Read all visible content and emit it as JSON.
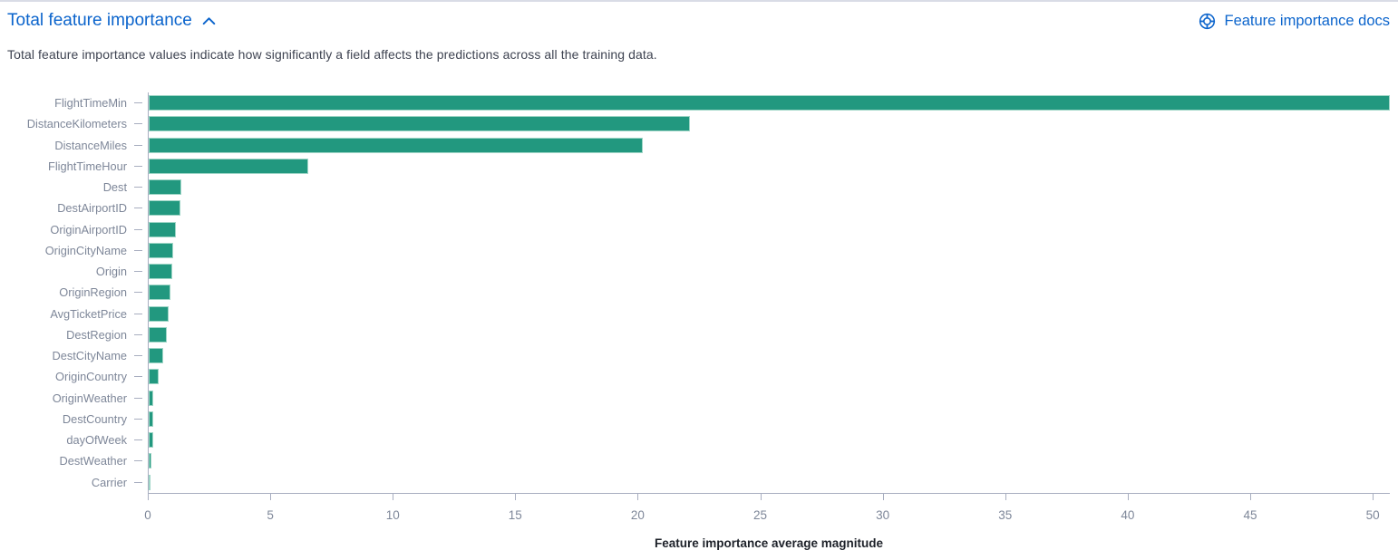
{
  "header": {
    "title": "Total feature importance",
    "collapse_icon": "chevron-up-icon",
    "docs_link": {
      "label": "Feature importance docs",
      "icon": "life-buoy-icon"
    }
  },
  "description": "Total feature importance values indicate how significantly a field affects the predictions across all the training data.",
  "colors": {
    "link_blue": "#0b64cc",
    "bar_fill": "#22987f",
    "bar_edge": "#9ed5c6",
    "axis_line": "#a8aec0",
    "axis_label_gray": "#7e8799",
    "description_text": "#3e4351",
    "axis_title_text": "#1d2129",
    "top_divider": "#d9dce6"
  },
  "chart_data": {
    "type": "bar",
    "orientation": "horizontal",
    "title": "",
    "xlabel": "Feature importance average magnitude",
    "ylabel": "",
    "categories": [
      "FlightTimeMin",
      "DistanceKilometers",
      "DistanceMiles",
      "FlightTimeHour",
      "Dest",
      "DestAirportID",
      "OriginAirportID",
      "OriginCityName",
      "Origin",
      "OriginRegion",
      "AvgTicketPrice",
      "DestRegion",
      "DestCityName",
      "OriginCountry",
      "OriginWeather",
      "DestCountry",
      "dayOfWeek",
      "DestWeather",
      "Carrier"
    ],
    "values": [
      50.7,
      22.1,
      20.2,
      6.5,
      1.35,
      1.3,
      1.1,
      1.0,
      0.98,
      0.9,
      0.82,
      0.74,
      0.6,
      0.41,
      0.19,
      0.19,
      0.17,
      0.12,
      0.04
    ],
    "x_ticks": [
      0,
      5,
      10,
      15,
      20,
      25,
      30,
      35,
      40,
      45,
      50
    ],
    "xlim": [
      0,
      50.7
    ],
    "grid": false,
    "legend": "none"
  }
}
